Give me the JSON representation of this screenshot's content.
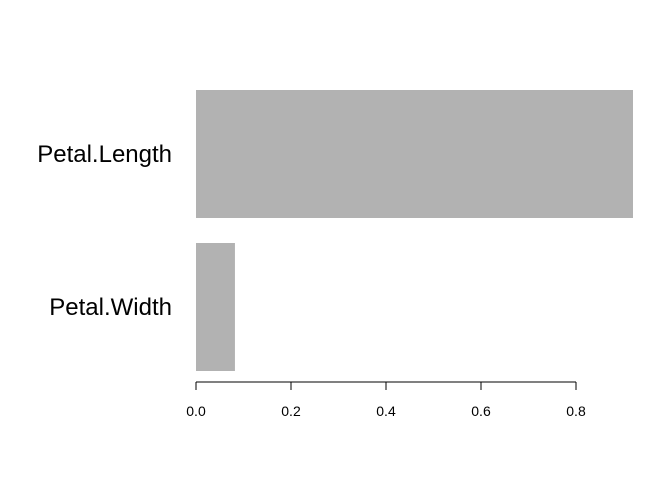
{
  "chart_data": {
    "type": "bar",
    "orientation": "horizontal",
    "categories": [
      "Petal.Length",
      "Petal.Width"
    ],
    "values": [
      0.92,
      0.082
    ],
    "x_ticks": [
      "0.0",
      "0.2",
      "0.4",
      "0.6",
      "0.8"
    ],
    "xlim": [
      0,
      0.92
    ],
    "bar_color": "#b2b2b2",
    "grid": false,
    "legend": "none",
    "title": "",
    "xlabel": "",
    "ylabel": ""
  }
}
